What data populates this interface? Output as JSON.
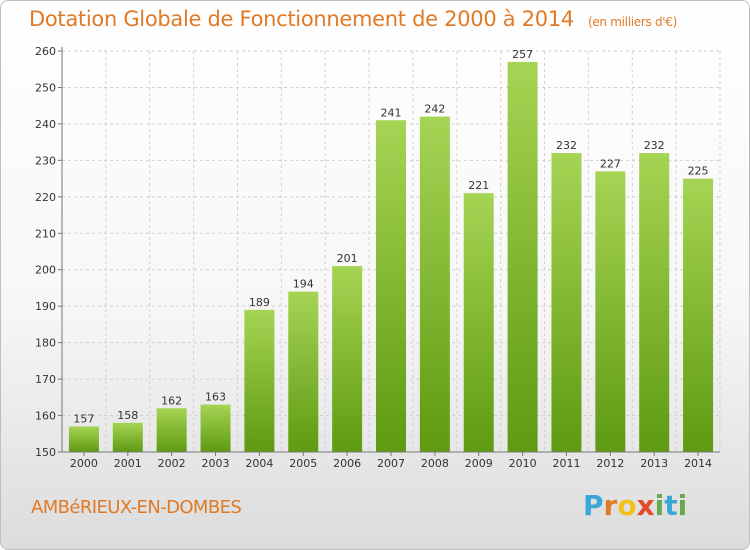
{
  "header": {
    "title": "Dotation Globale de Fonctionnement de 2000 à 2014",
    "unit": "(en milliers d'€)"
  },
  "footer": {
    "commune": "AMBéRIEUX-EN-DOMBES",
    "brand_letters": [
      "P",
      "r",
      "o",
      "x",
      "i",
      "t",
      "i"
    ]
  },
  "colors": {
    "bar_top": "#a6d454",
    "bar_bottom": "#5e9a12",
    "title": "#e07a26",
    "grid": "#d0d0d0",
    "axis_text": "#333333"
  },
  "chart_data": {
    "type": "bar",
    "title": "Dotation Globale de Fonctionnement de 2000 à 2014",
    "unit": "(en milliers d'€)",
    "categories": [
      "2000",
      "2001",
      "2002",
      "2003",
      "2004",
      "2005",
      "2006",
      "2007",
      "2008",
      "2009",
      "2010",
      "2011",
      "2012",
      "2013",
      "2014"
    ],
    "values": [
      157,
      158,
      162,
      163,
      189,
      194,
      201,
      241,
      242,
      221,
      257,
      232,
      227,
      232,
      225
    ],
    "ylim": [
      150,
      260
    ],
    "yticks": [
      150,
      160,
      170,
      180,
      190,
      200,
      210,
      220,
      230,
      240,
      250,
      260
    ],
    "grid": true,
    "data_labels": true
  }
}
